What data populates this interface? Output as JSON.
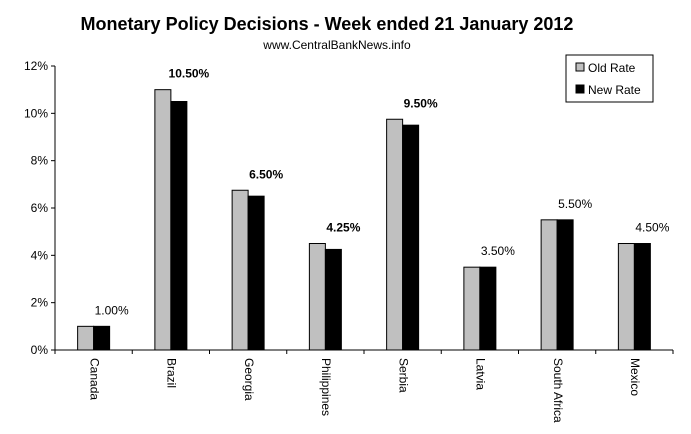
{
  "chart_data": {
    "type": "bar",
    "title": "Monetary Policy Decisions - Week ended  21 January 2012",
    "subtitle": "www.CentralBankNews.info",
    "xlabel": "",
    "ylabel": "",
    "ylim": [
      0,
      12
    ],
    "yticks": [
      "0%",
      "2%",
      "4%",
      "6%",
      "8%",
      "10%",
      "12%"
    ],
    "categories": [
      "Canada",
      "Brazil",
      "Georgia",
      "Philippines",
      "Serbia",
      "Latvia",
      "South Africa",
      "Mexico"
    ],
    "series": [
      {
        "name": "Old Rate",
        "color": "#c0c0c0",
        "values": [
          1.0,
          11.0,
          6.75,
          4.5,
          9.75,
          3.5,
          5.5,
          4.5
        ]
      },
      {
        "name": "New Rate",
        "color": "#000000",
        "values": [
          1.0,
          10.5,
          6.5,
          4.25,
          9.5,
          3.5,
          5.5,
          4.5
        ]
      }
    ],
    "data_labels": [
      "1.00%",
      "10.50%",
      "6.50%",
      "4.25%",
      "9.50%",
      "3.50%",
      "5.50%",
      "4.50%"
    ],
    "data_label_bold": [
      false,
      true,
      true,
      true,
      true,
      false,
      false,
      false
    ],
    "legend_position": "top-right",
    "grid": false
  }
}
